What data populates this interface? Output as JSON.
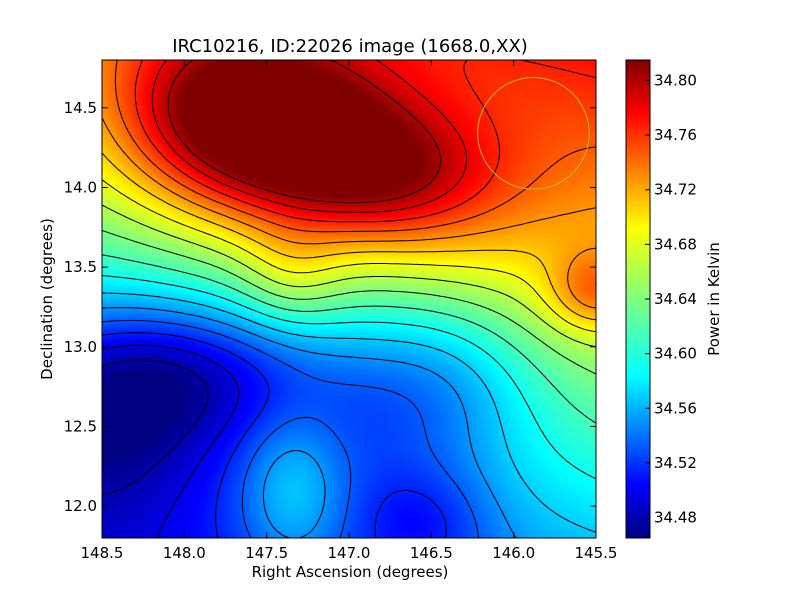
{
  "chart_data": {
    "type": "heatmap",
    "title": "IRC10216, ID:22026 image (1668.0,XX)",
    "xlabel": "Right Ascension (degrees)",
    "ylabel": "Declination (degrees)",
    "colorbar_label": "Power in Kelvin",
    "colormap": "jet",
    "xlim": [
      148.5,
      145.5
    ],
    "ylim": [
      11.8,
      14.8
    ],
    "x_ticks": [
      "148.5",
      "148.0",
      "147.5",
      "147.0",
      "146.5",
      "146.0",
      "145.5"
    ],
    "y_ticks": [
      "12.0",
      "12.5",
      "13.0",
      "13.5",
      "14.0",
      "14.5"
    ],
    "colorbar_range": [
      34.465,
      34.815
    ],
    "colorbar_ticks": [
      "34.48",
      "34.52",
      "34.56",
      "34.60",
      "34.64",
      "34.68",
      "34.72",
      "34.76",
      "34.80"
    ],
    "contours": "black",
    "beam_circle": {
      "ra": 145.88,
      "dec": 14.34,
      "radius_deg": 0.35,
      "color": "#b5b832"
    },
    "features": [
      {
        "kind": "max",
        "ra": 147.45,
        "dec": 14.33,
        "value": 34.81
      },
      {
        "kind": "min",
        "ra": 148.45,
        "dec": 12.55,
        "value": 34.47
      }
    ]
  }
}
